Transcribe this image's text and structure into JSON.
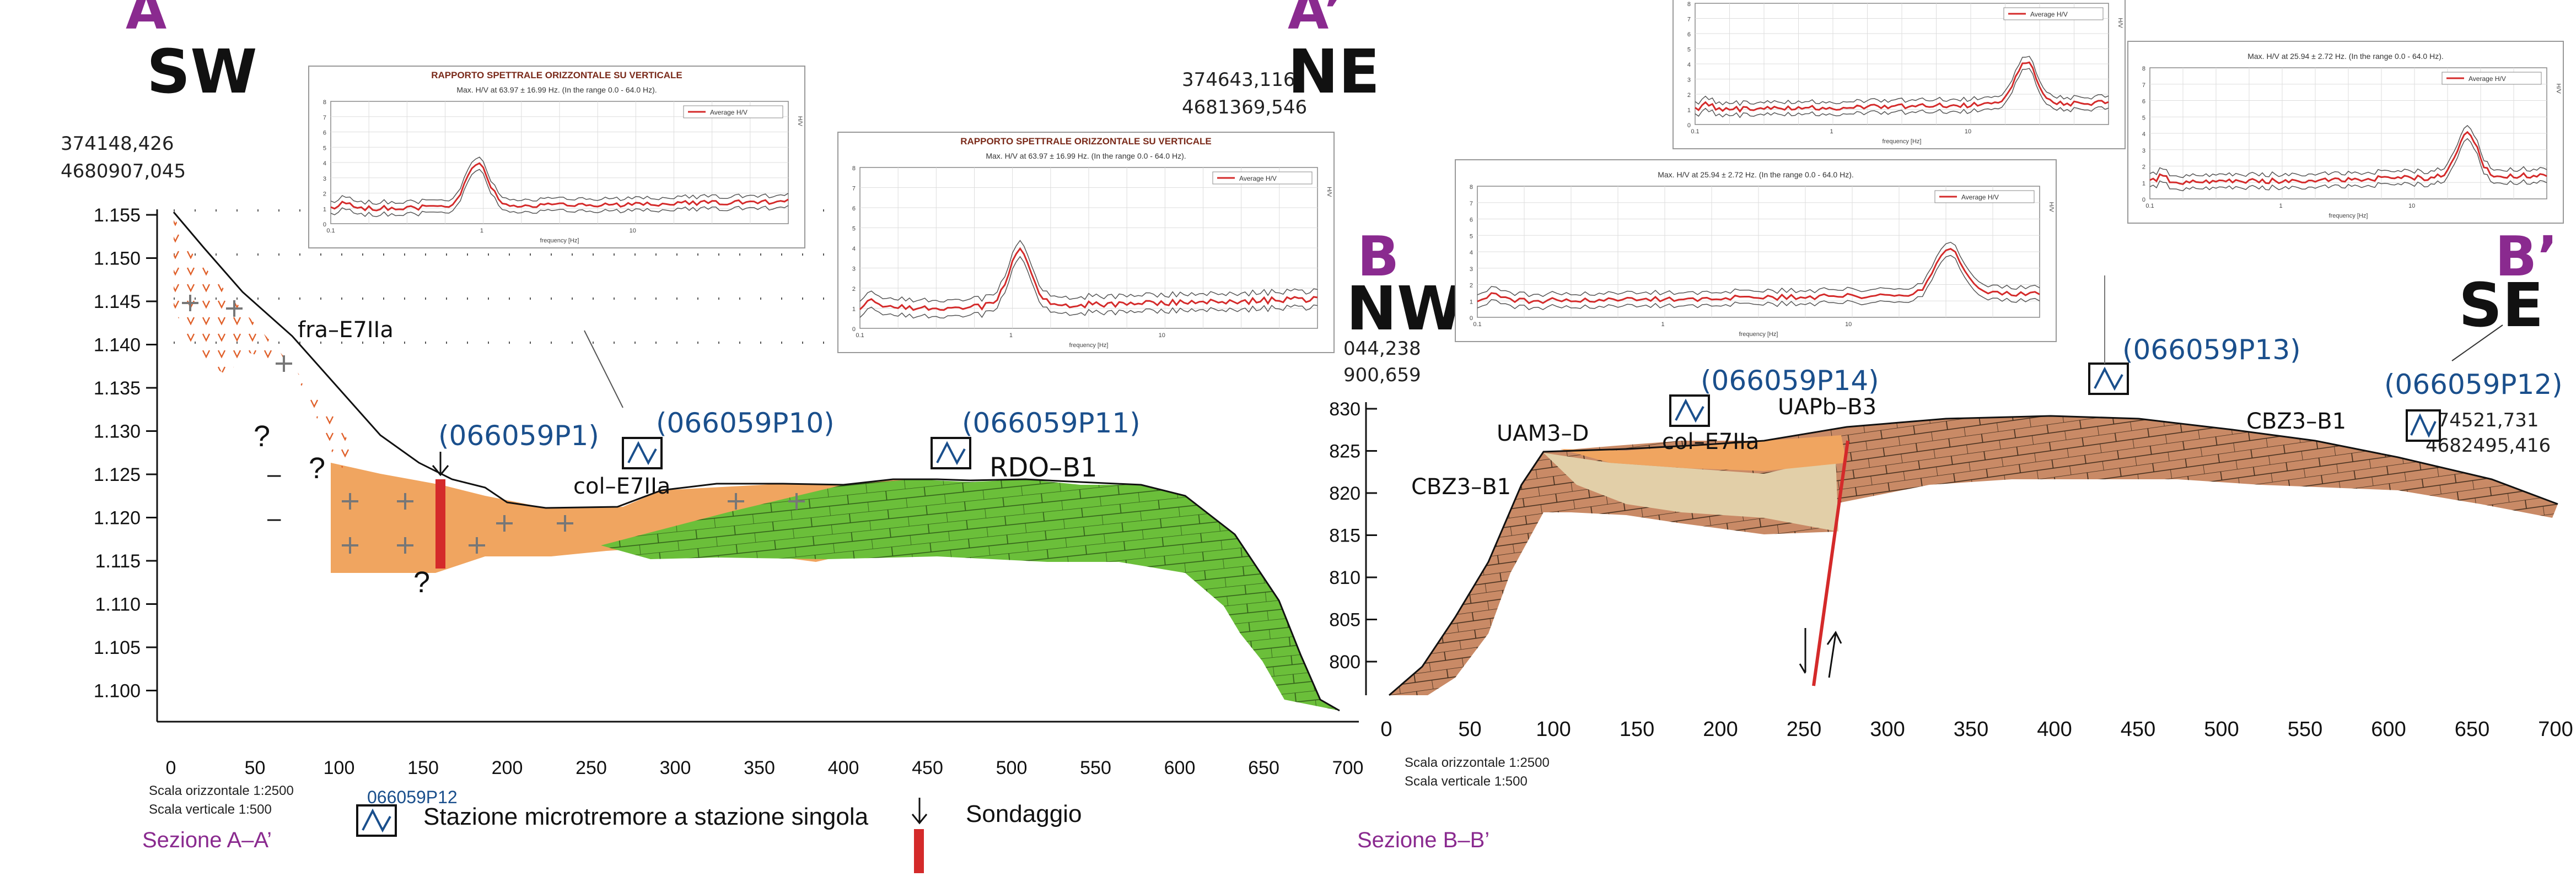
{
  "section_a": {
    "start_letter": "A",
    "end_letter": "A’",
    "start_dir": "SW",
    "end_dir": "NE",
    "coord_start_1": "374148,426",
    "coord_start_2": "4680907,045",
    "coord_end_1": "374643,116",
    "coord_end_2": "4681369,546",
    "y_ticks": [
      "1.155",
      "1.150",
      "1.145",
      "1.140",
      "1.135",
      "1.130",
      "1.125",
      "1.120",
      "1.115",
      "1.110",
      "1.105",
      "1.100"
    ],
    "x_ticks": [
      "0",
      "50",
      "100",
      "150",
      "200",
      "250",
      "300",
      "350",
      "400",
      "450",
      "500",
      "550",
      "600",
      "650",
      "700"
    ],
    "scale_h": "Scala orizzontale 1:2500",
    "scale_v": "Scala verticale 1:500",
    "caption": "Sezione A–A’",
    "labels": {
      "fra": "fra–E7IIa",
      "col": "col–E7IIa",
      "rdo": "RDO–B1",
      "p1": "(066059P1)",
      "p10": "(066059P10)",
      "p11": "(066059P11)",
      "q": "?",
      "dash": "–"
    }
  },
  "section_b": {
    "start_letter": "B",
    "end_letter": "B’",
    "start_dir": "NW",
    "end_dir": "SE",
    "coord_start_1": "044,238",
    "coord_start_2": "900,659",
    "coord_end_1": "374521,731",
    "coord_end_2": "4682495,416",
    "y_ticks": [
      "830",
      "825",
      "820",
      "815",
      "810",
      "805",
      "800"
    ],
    "x_ticks": [
      "0",
      "50",
      "100",
      "150",
      "200",
      "250",
      "300",
      "350",
      "400",
      "450",
      "500",
      "550",
      "600",
      "650",
      "700"
    ],
    "scale_h": "Scala orizzontale 1:2500",
    "scale_v": "Scala verticale 1:500",
    "caption": "Sezione B–B’",
    "labels": {
      "uam": "UAM3–D",
      "col": "col–E7IIa",
      "uapb": "UAPb–B3",
      "cbz_left": "CBZ3–B1",
      "cbz_right": "CBZ3–B1",
      "p12": "(066059P12)",
      "p13": "(066059P13)",
      "p14": "(066059P14)"
    }
  },
  "legend": {
    "station_code": "066059P12",
    "station_label": "Stazione microtremore a stazione singola",
    "borehole_label": "Sondaggio"
  },
  "hvsr_panels": {
    "title": "RAPPORTO SPETTRALE ORIZZONTALE SU VERTICALE",
    "subtitle_1": "Max. H/V at 63.97 ± 16.99 Hz. (In the range 0.0 - 64.0 Hz).",
    "subtitle_2": "Max. H/V at 25.94 ± 2.72 Hz. (In the range 0.0 - 64.0 Hz).",
    "legend_entry": "Average H/V",
    "x_axis_label": "frequency [Hz]",
    "y_axis_label": "H/V",
    "tick_labels": [
      "0.1",
      "1",
      "10"
    ],
    "y_tick_labels": [
      "8",
      "7",
      "6",
      "5",
      "4",
      "3",
      "2",
      "1",
      "0"
    ]
  },
  "colors": {
    "purple": "#8a2a8f",
    "blue": "#1a4f8c",
    "orange": "#f0a560",
    "green": "#6bbf3a",
    "brown": "#c98a66",
    "beige": "#e2cfa8",
    "red": "#d42a2a"
  }
}
